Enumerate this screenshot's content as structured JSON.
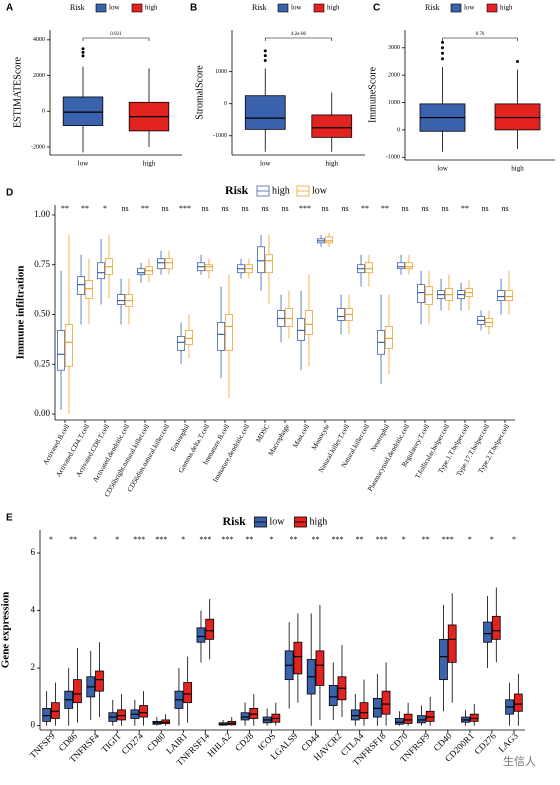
{
  "chart_data": [
    {
      "type": "boxplot",
      "label": "A",
      "ylabel": "ESTIMATEScore",
      "legend_title": "Risk",
      "p_value": "0.021",
      "categories": [
        "low",
        "high"
      ],
      "colors": [
        "#3a62ad",
        "#e3231f"
      ],
      "min": [
        -2300,
        -2000
      ],
      "q1": [
        -800,
        -1100
      ],
      "median": [
        -50,
        -300
      ],
      "q3": [
        800,
        500
      ],
      "max": [
        2500,
        2400
      ],
      "outliers": [
        [
          3100,
          3300,
          3500
        ],
        []
      ],
      "ylim": [
        -2450,
        4550
      ],
      "yticks": [
        -2000,
        0,
        2000,
        4000
      ]
    },
    {
      "type": "boxplot",
      "label": "B",
      "ylabel": "StromalScore",
      "legend_title": "Risk",
      "p_value": "4.2e-06",
      "categories": [
        "low",
        "high"
      ],
      "colors": [
        "#3a62ad",
        "#e3231f"
      ],
      "min": [
        -1500,
        -1500
      ],
      "q1": [
        -800,
        -1050
      ],
      "median": [
        -450,
        -750
      ],
      "q3": [
        250,
        -350
      ],
      "max": [
        1100,
        350
      ],
      "outliers": [
        [
          1350,
          1500,
          1650
        ],
        []
      ],
      "ylim": [
        -1600,
        2300
      ],
      "yticks": [
        -1000,
        0,
        1000
      ]
    },
    {
      "type": "boxplot",
      "label": "C",
      "ylabel": "ImmuneScore",
      "legend_title": "Risk",
      "p_value": "0.76",
      "categories": [
        "low",
        "high"
      ],
      "colors": [
        "#3a62ad",
        "#e3231f"
      ],
      "min": [
        -800,
        -700
      ],
      "q1": [
        -50,
        0
      ],
      "median": [
        450,
        450
      ],
      "q3": [
        950,
        950
      ],
      "max": [
        2300,
        2200
      ],
      "outliers": [
        [
          2600,
          2800,
          3000,
          3200
        ],
        [
          2500
        ]
      ],
      "ylim": [
        -1100,
        3650
      ],
      "yticks": [
        -1000,
        0,
        1000,
        2000,
        3000
      ]
    },
    {
      "type": "grouped_boxplot",
      "label": "D",
      "ylabel": "Immune infiltration",
      "legend_title": "Risk",
      "filled": false,
      "categories": [
        "Activated.B.cell",
        "Activated.CD4.T.cell",
        "Activated.CD8.T.cell",
        "Activated.dendritic.cell",
        "CD56bright.natural.killer.cell",
        "CD56dim.natural.killer.cell",
        "Eosinophil",
        "Gamma.delta.T.cell",
        "Immature.B.cell",
        "Immature.dendritic.cell",
        "MDSC",
        "Macrophage",
        "Mast.cell",
        "Monocyte",
        "Natural.killer.T.cell",
        "Natural.killer.cell",
        "Neutrophil",
        "Plasmacytoid.dendritic.cell",
        "Regulatory.T.cell",
        "T.follicular.helper.cell",
        "Type.1.T.helper.cell",
        "Type.17.T.helper.cell",
        "Type.2.T.helper.cell"
      ],
      "significance": [
        "**",
        "**",
        "*",
        "ns",
        "**",
        "ns",
        "***",
        "ns",
        "ns",
        "ns",
        "ns",
        "ns",
        "***",
        "ns",
        "ns",
        "**",
        "**",
        "ns",
        "ns",
        "ns",
        "**",
        "ns",
        "ns"
      ],
      "series": [
        {
          "name": "high",
          "color": "#3c64ae",
          "min": [
            0.02,
            0.45,
            0.55,
            0.45,
            0.66,
            0.7,
            0.25,
            0.7,
            0.18,
            0.68,
            0.62,
            0.36,
            0.22,
            0.84,
            0.4,
            0.64,
            0.15,
            0.7,
            0.45,
            0.52,
            0.52,
            0.42,
            0.5
          ],
          "q1": [
            0.22,
            0.6,
            0.68,
            0.55,
            0.7,
            0.73,
            0.32,
            0.72,
            0.32,
            0.71,
            0.71,
            0.44,
            0.37,
            0.86,
            0.47,
            0.71,
            0.3,
            0.73,
            0.56,
            0.58,
            0.58,
            0.45,
            0.57
          ],
          "median": [
            0.3,
            0.65,
            0.71,
            0.57,
            0.71,
            0.76,
            0.36,
            0.74,
            0.4,
            0.73,
            0.77,
            0.48,
            0.42,
            0.87,
            0.49,
            0.73,
            0.36,
            0.74,
            0.61,
            0.6,
            0.6,
            0.47,
            0.59
          ],
          "q3": [
            0.42,
            0.69,
            0.76,
            0.6,
            0.73,
            0.78,
            0.39,
            0.76,
            0.46,
            0.75,
            0.84,
            0.52,
            0.48,
            0.88,
            0.53,
            0.75,
            0.42,
            0.76,
            0.65,
            0.62,
            0.62,
            0.49,
            0.62
          ],
          "max": [
            0.72,
            0.8,
            0.88,
            0.68,
            0.76,
            0.82,
            0.46,
            0.8,
            0.64,
            0.78,
            0.9,
            0.6,
            0.62,
            0.9,
            0.6,
            0.8,
            0.6,
            0.8,
            0.72,
            0.68,
            0.66,
            0.52,
            0.68
          ]
        },
        {
          "name": "low",
          "color": "#f0a32f",
          "min": [
            0.0,
            0.45,
            0.58,
            0.45,
            0.66,
            0.7,
            0.28,
            0.68,
            0.08,
            0.68,
            0.55,
            0.38,
            0.24,
            0.84,
            0.4,
            0.64,
            0.2,
            0.7,
            0.45,
            0.52,
            0.52,
            0.4,
            0.5
          ],
          "q1": [
            0.24,
            0.58,
            0.7,
            0.54,
            0.7,
            0.73,
            0.35,
            0.72,
            0.32,
            0.71,
            0.71,
            0.44,
            0.4,
            0.86,
            0.47,
            0.71,
            0.33,
            0.73,
            0.55,
            0.57,
            0.59,
            0.44,
            0.57
          ],
          "median": [
            0.36,
            0.63,
            0.74,
            0.57,
            0.72,
            0.76,
            0.38,
            0.74,
            0.44,
            0.73,
            0.77,
            0.48,
            0.45,
            0.87,
            0.5,
            0.73,
            0.38,
            0.74,
            0.6,
            0.6,
            0.61,
            0.46,
            0.59
          ],
          "q3": [
            0.45,
            0.67,
            0.78,
            0.6,
            0.74,
            0.78,
            0.42,
            0.75,
            0.5,
            0.75,
            0.8,
            0.53,
            0.52,
            0.89,
            0.53,
            0.76,
            0.44,
            0.76,
            0.64,
            0.63,
            0.63,
            0.48,
            0.62
          ],
          "max": [
            0.9,
            0.78,
            0.9,
            0.68,
            0.78,
            0.82,
            0.5,
            0.78,
            0.7,
            0.78,
            0.9,
            0.62,
            0.7,
            0.91,
            0.6,
            0.8,
            0.6,
            0.8,
            0.72,
            0.7,
            0.67,
            0.52,
            0.72
          ]
        }
      ],
      "ylim": [
        -0.03,
        1.05
      ],
      "yticks": [
        {
          "value": 0,
          "label": "0.00"
        },
        {
          "value": 0.25,
          "label": "0.25"
        },
        {
          "value": 0.5,
          "label": "0.50"
        },
        {
          "value": 0.75,
          "label": "0.75"
        },
        {
          "value": 1,
          "label": "1.00"
        }
      ]
    },
    {
      "type": "grouped_boxplot",
      "label": "E",
      "ylabel": "Gene expression",
      "legend_title": "Risk",
      "filled": true,
      "categories": [
        "TNFSF9",
        "CD86",
        "TNFRSF4",
        "TIGIT",
        "CD274",
        "CD80",
        "LAIR1",
        "TNFRSF14",
        "HHLA2",
        "CD28",
        "ICOS",
        "LGALS9",
        "CD44",
        "HAVCR2",
        "CTLA4",
        "TNFRSF18",
        "CD70",
        "TNFRSF9",
        "CD40",
        "CD200R1",
        "CD276",
        "LAG3"
      ],
      "significance": [
        "*",
        "**",
        "*",
        "*",
        "***",
        "***",
        "*",
        "***",
        "***",
        "**",
        "*",
        "**",
        "**",
        "***",
        "**",
        "***",
        "*",
        "**",
        "***",
        "*",
        "*",
        "*"
      ],
      "series": [
        {
          "name": "low",
          "color": "#3a62ad",
          "min": [
            0,
            0,
            0.2,
            0,
            0,
            0,
            0,
            2.2,
            0,
            0,
            0,
            0.6,
            0,
            0.2,
            0,
            0,
            0,
            0,
            0.5,
            0,
            2.0,
            0
          ],
          "q1": [
            0.15,
            0.6,
            1.0,
            0.15,
            0.25,
            0.05,
            0.6,
            2.9,
            0.02,
            0.2,
            0.1,
            1.6,
            1.1,
            0.7,
            0.2,
            0.3,
            0.05,
            0.1,
            1.6,
            0.12,
            2.9,
            0.4
          ],
          "median": [
            0.35,
            0.9,
            1.35,
            0.3,
            0.4,
            0.1,
            0.9,
            3.1,
            0.05,
            0.3,
            0.2,
            2.1,
            1.7,
            1.0,
            0.35,
            0.6,
            0.12,
            0.2,
            2.4,
            0.2,
            3.2,
            0.65
          ],
          "q3": [
            0.6,
            1.2,
            1.7,
            0.45,
            0.55,
            0.15,
            1.2,
            3.4,
            0.1,
            0.45,
            0.3,
            2.6,
            2.3,
            1.4,
            0.55,
            0.95,
            0.25,
            0.35,
            3.0,
            0.3,
            3.6,
            0.9
          ],
          "max": [
            1.2,
            2.0,
            2.6,
            0.9,
            0.9,
            0.3,
            2.0,
            4.0,
            0.2,
            0.8,
            0.6,
            3.6,
            3.9,
            2.2,
            1.1,
            1.8,
            0.5,
            0.7,
            4.2,
            0.55,
            4.5,
            1.5
          ]
        },
        {
          "name": "high",
          "color": "#e3231f",
          "min": [
            0,
            0.1,
            0.3,
            0,
            0,
            0,
            0.1,
            2.3,
            0,
            0,
            0,
            0.8,
            0.2,
            0.3,
            0,
            0,
            0,
            0,
            0.8,
            0,
            2.2,
            0
          ],
          "q1": [
            0.25,
            0.8,
            1.2,
            0.2,
            0.3,
            0.07,
            0.8,
            3.0,
            0.03,
            0.25,
            0.12,
            1.8,
            1.4,
            0.9,
            0.25,
            0.4,
            0.08,
            0.15,
            2.2,
            0.15,
            3.0,
            0.5
          ],
          "median": [
            0.5,
            1.1,
            1.6,
            0.35,
            0.45,
            0.12,
            1.1,
            3.3,
            0.08,
            0.4,
            0.25,
            2.4,
            2.1,
            1.3,
            0.45,
            0.75,
            0.2,
            0.3,
            3.0,
            0.25,
            3.3,
            0.75
          ],
          "q3": [
            0.8,
            1.6,
            1.9,
            0.55,
            0.7,
            0.2,
            1.5,
            3.7,
            0.15,
            0.6,
            0.4,
            2.9,
            2.6,
            1.7,
            0.8,
            1.2,
            0.4,
            0.5,
            3.5,
            0.4,
            3.8,
            1.1
          ],
          "max": [
            1.5,
            2.7,
            2.9,
            1.1,
            1.2,
            0.4,
            2.4,
            4.4,
            0.3,
            1.1,
            0.8,
            3.9,
            4.2,
            2.8,
            1.6,
            2.2,
            0.8,
            1.0,
            4.6,
            0.75,
            4.8,
            1.8
          ]
        }
      ],
      "ylim": [
        -0.15,
        6.8
      ],
      "yticks": [
        0,
        2,
        4,
        6
      ]
    }
  ],
  "watermark": "生信人"
}
